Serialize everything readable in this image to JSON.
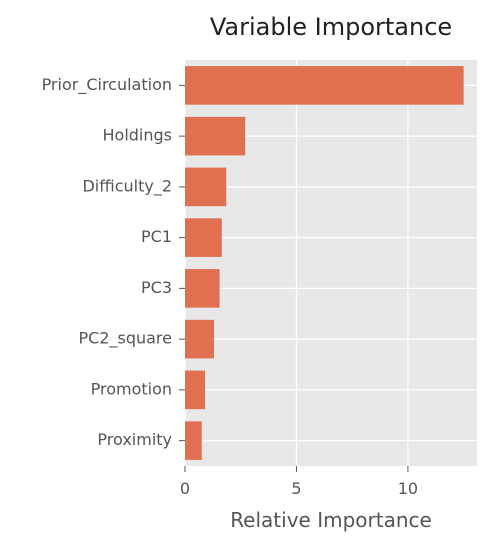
{
  "chart_data": {
    "type": "bar",
    "orientation": "horizontal",
    "title": "Variable Importance",
    "xlabel": "Relative Importance",
    "ylabel": "",
    "categories": [
      "Prior_Circulation",
      "Holdings",
      "Difficulty_2",
      "PC1",
      "PC3",
      "PC2_square",
      "Promotion",
      "Proximity"
    ],
    "values": [
      12.5,
      2.7,
      1.85,
      1.65,
      1.55,
      1.3,
      0.9,
      0.75
    ],
    "xlim": [
      0,
      13.1
    ],
    "xticks": [
      0,
      5,
      10
    ],
    "grid": true,
    "legend": "none",
    "colors": {
      "bar": "#E07050",
      "plot_background": "#E8E8E8",
      "grid": "#FFFFFF",
      "tick_text": "#555555",
      "title_text": "#222222"
    }
  }
}
